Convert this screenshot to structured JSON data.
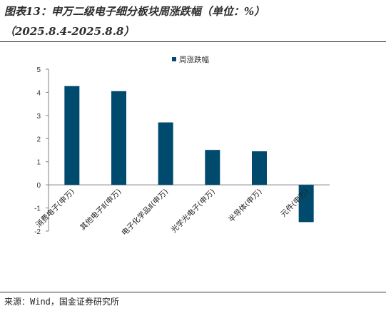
{
  "header": {
    "title_line1": "图表13：申万二级电子细分板块周涨跌幅（单位：%）",
    "title_line2": "（2025.8.4-2025.8.8）"
  },
  "footer": {
    "source": "来源：Wind，国金证券研究所"
  },
  "chart_data": {
    "type": "bar",
    "categories": [
      "消费电子(申万)",
      "其他电子Ⅱ(申万)",
      "电子化学品Ⅱ(申万)",
      "光学光电子(申万)",
      "半导体(申万)",
      "元件(申万)"
    ],
    "series": [
      {
        "name": "周涨跌幅",
        "values": [
          4.27,
          4.05,
          2.7,
          1.51,
          1.45,
          -1.61
        ],
        "color": "#004a6e"
      }
    ],
    "ylim": [
      -2,
      5
    ],
    "yticks": [
      -2,
      -1,
      0,
      1,
      2,
      3,
      4,
      5
    ],
    "grid": false,
    "legend_position": "top-center"
  }
}
